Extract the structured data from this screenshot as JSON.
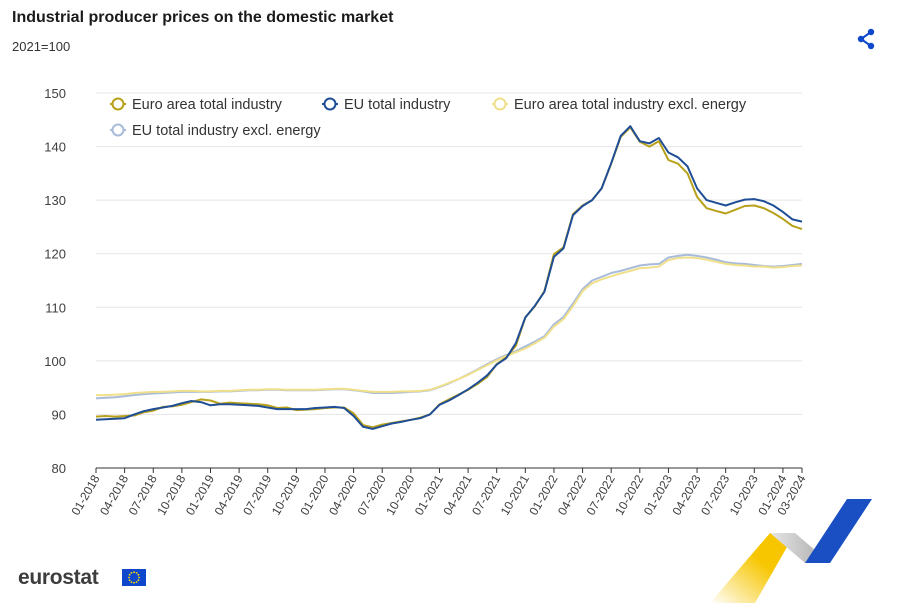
{
  "header": {
    "title": "Industrial producer prices on the domestic market",
    "subtitle": "2021=100"
  },
  "footer": {
    "brand": "eurostat"
  },
  "chart_data": {
    "type": "line",
    "title": "Industrial producer prices on the domestic market",
    "subtitle": "2021=100",
    "ylim": [
      80,
      150
    ],
    "yticks": [
      80,
      90,
      100,
      110,
      120,
      130,
      140,
      150
    ],
    "x_tick_labels": [
      "01-2018",
      "04-2018",
      "07-2018",
      "10-2018",
      "01-2019",
      "04-2019",
      "07-2019",
      "10-2019",
      "01-2020",
      "04-2020",
      "07-2020",
      "10-2020",
      "01-2021",
      "04-2021",
      "07-2021",
      "10-2021",
      "01-2022",
      "04-2022",
      "07-2022",
      "10-2022",
      "01-2023",
      "04-2023",
      "07-2023",
      "10-2023",
      "01-2024",
      "03-2024"
    ],
    "period_start": "01-2018",
    "period_end": "03-2024",
    "legend_position": "top",
    "series": [
      {
        "name": "Euro area total industry",
        "color": "#b8a11a",
        "values": [
          89.6,
          89.7,
          89.6,
          89.7,
          89.8,
          90.4,
          90.7,
          91.4,
          91.5,
          91.8,
          92.3,
          92.8,
          92.6,
          92.0,
          92.2,
          92.1,
          92.0,
          91.9,
          91.7,
          91.2,
          91.3,
          90.8,
          90.9,
          91.0,
          91.2,
          91.3,
          91.3,
          90.2,
          88.0,
          87.6,
          88.1,
          88.4,
          88.7,
          89.0,
          89.4,
          90.0,
          91.9,
          92.8,
          93.7,
          94.6,
          95.7,
          97.0,
          99.4,
          100.6,
          102.8,
          108.1,
          110.2,
          113.0,
          119.9,
          121.2,
          127.4,
          129.0,
          130.0,
          132.2,
          136.8,
          141.8,
          143.6,
          140.9,
          140.0,
          141.0,
          137.5,
          136.8,
          135.0,
          130.6,
          128.5,
          128.0,
          127.5,
          128.2,
          128.9,
          129.0,
          128.5,
          127.6,
          126.5,
          125.2,
          124.6
        ]
      },
      {
        "name": "EU total industry",
        "color": "#1f4e96",
        "values": [
          89.0,
          89.1,
          89.2,
          89.3,
          90.0,
          90.6,
          91.0,
          91.3,
          91.6,
          92.1,
          92.5,
          92.3,
          91.7,
          91.9,
          91.9,
          91.8,
          91.7,
          91.6,
          91.3,
          91.0,
          91.0,
          91.0,
          91.0,
          91.2,
          91.3,
          91.4,
          91.2,
          89.7,
          87.7,
          87.3,
          87.8,
          88.3,
          88.6,
          89.0,
          89.3,
          90.0,
          91.8,
          92.6,
          93.6,
          94.7,
          95.9,
          97.3,
          99.3,
          100.5,
          103.3,
          108.1,
          110.3,
          112.9,
          119.4,
          121.0,
          127.2,
          128.9,
          130.0,
          132.2,
          136.9,
          142.0,
          143.8,
          141.0,
          140.6,
          141.6,
          138.9,
          138.0,
          136.3,
          132.2,
          130.0,
          129.5,
          129.0,
          129.6,
          130.1,
          130.2,
          129.8,
          129.0,
          127.8,
          126.4,
          126.0
        ]
      },
      {
        "name": "Euro area total industry excl. energy",
        "color": "#f0e08c",
        "values": [
          93.6,
          93.6,
          93.7,
          93.8,
          94.0,
          94.1,
          94.2,
          94.2,
          94.3,
          94.4,
          94.4,
          94.3,
          94.3,
          94.4,
          94.4,
          94.5,
          94.6,
          94.6,
          94.7,
          94.7,
          94.6,
          94.6,
          94.6,
          94.6,
          94.7,
          94.8,
          94.8,
          94.6,
          94.4,
          94.2,
          94.2,
          94.2,
          94.3,
          94.3,
          94.4,
          94.6,
          95.2,
          95.9,
          96.6,
          97.4,
          98.3,
          99.2,
          100.1,
          100.9,
          101.6,
          102.3,
          103.3,
          104.3,
          106.4,
          107.8,
          110.2,
          113.0,
          114.5,
          115.2,
          115.8,
          116.3,
          116.8,
          117.3,
          117.4,
          117.6,
          118.8,
          119.2,
          119.3,
          119.2,
          118.9,
          118.5,
          118.1,
          117.9,
          117.8,
          117.6,
          117.6,
          117.4,
          117.5,
          117.7,
          117.8
        ]
      },
      {
        "name": "EU total industry excl. energy",
        "color": "#a8bcda",
        "values": [
          93.0,
          93.1,
          93.2,
          93.4,
          93.6,
          93.8,
          93.9,
          94.0,
          94.1,
          94.2,
          94.2,
          94.2,
          94.2,
          94.3,
          94.3,
          94.4,
          94.5,
          94.5,
          94.6,
          94.6,
          94.5,
          94.5,
          94.5,
          94.5,
          94.6,
          94.7,
          94.7,
          94.5,
          94.3,
          94.0,
          94.0,
          94.0,
          94.1,
          94.2,
          94.3,
          94.5,
          95.1,
          95.8,
          96.6,
          97.5,
          98.4,
          99.4,
          100.3,
          101.1,
          101.8,
          102.7,
          103.6,
          104.6,
          106.8,
          108.2,
          110.7,
          113.4,
          115.0,
          115.7,
          116.4,
          116.8,
          117.3,
          117.8,
          118.0,
          118.1,
          119.3,
          119.6,
          119.8,
          119.6,
          119.3,
          118.9,
          118.4,
          118.2,
          118.1,
          117.9,
          117.7,
          117.6,
          117.7,
          117.9,
          118.1
        ]
      }
    ]
  }
}
